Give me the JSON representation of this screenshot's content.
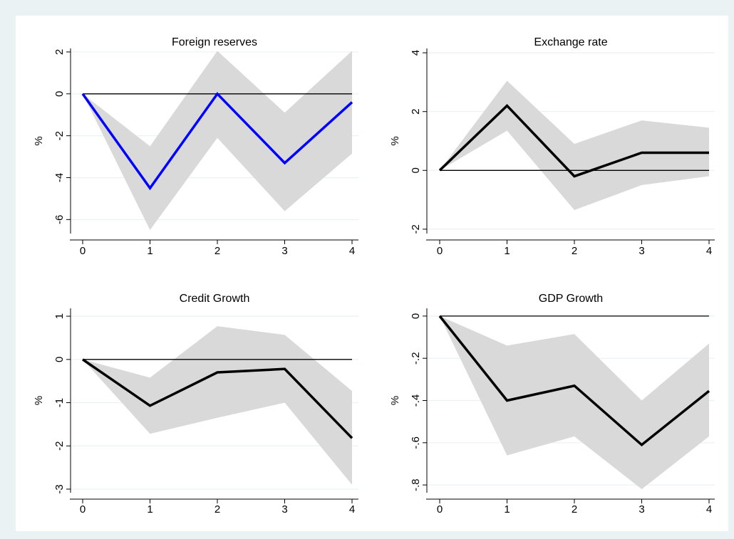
{
  "colors": {
    "outer_background": "#eaf2f3",
    "plot_background": "#ffffff",
    "band": "#d9d9d9",
    "gridline": "#eaf2f3",
    "zero_line": "#000000"
  },
  "chart_data": [
    {
      "type": "line",
      "title": "Foreign reserves",
      "ylabel": "%",
      "x": [
        0,
        1,
        2,
        3,
        4
      ],
      "x_ticks": [
        "0",
        "1",
        "2",
        "3",
        "4"
      ],
      "y_ticks": [
        2,
        0,
        -2,
        -4,
        -6
      ],
      "y_tick_labels": [
        "2",
        "0",
        "-2",
        "-4",
        "-6"
      ],
      "ylim": [
        -6.6,
        2.1
      ],
      "reference_line": 0,
      "line_color": "#0000ff",
      "grid": true,
      "series": [
        {
          "values": [
            0,
            -4.5,
            0,
            -3.3,
            -0.4
          ]
        },
        {
          "role": "band_upper",
          "values": [
            0,
            -2.5,
            2.05,
            -0.9,
            2.05
          ]
        },
        {
          "role": "band_lower",
          "values": [
            0,
            -6.5,
            -2.1,
            -5.6,
            -2.85
          ]
        }
      ]
    },
    {
      "type": "line",
      "title": "Exchange rate",
      "ylabel": "%",
      "x": [
        0,
        1,
        2,
        3,
        4
      ],
      "x_ticks": [
        "0",
        "1",
        "2",
        "3",
        "4"
      ],
      "y_ticks": [
        4,
        2,
        0,
        -2
      ],
      "y_tick_labels": [
        "4",
        "2",
        "0",
        "-2"
      ],
      "ylim": [
        -2.1,
        4.1
      ],
      "reference_line": 0,
      "line_color": "#000000",
      "grid": true,
      "series": [
        {
          "values": [
            0,
            2.2,
            -0.2,
            0.6,
            0.6
          ]
        },
        {
          "role": "band_upper",
          "values": [
            0,
            3.05,
            0.9,
            1.7,
            1.45
          ]
        },
        {
          "role": "band_lower",
          "values": [
            0,
            1.35,
            -1.35,
            -0.5,
            -0.2
          ]
        }
      ]
    },
    {
      "type": "line",
      "title": "Credit Growth",
      "ylabel": "%",
      "x": [
        0,
        1,
        2,
        3,
        4
      ],
      "x_ticks": [
        "0",
        "1",
        "2",
        "3",
        "4"
      ],
      "y_ticks": [
        1,
        0,
        -1,
        -2,
        -3
      ],
      "y_tick_labels": [
        "1",
        "0",
        "-1",
        "-2",
        "-3"
      ],
      "ylim": [
        -3.05,
        1.15
      ],
      "reference_line": 0,
      "line_color": "#000000",
      "grid": true,
      "series": [
        {
          "values": [
            0,
            -1.07,
            -0.3,
            -0.22,
            -1.82
          ]
        },
        {
          "role": "band_upper",
          "values": [
            0,
            -0.42,
            0.77,
            0.57,
            -0.73
          ]
        },
        {
          "role": "band_lower",
          "values": [
            0,
            -1.72,
            -1.35,
            -1.0,
            -2.9
          ]
        }
      ]
    },
    {
      "type": "line",
      "title": "GDP Growth",
      "ylabel": "%",
      "x": [
        0,
        1,
        2,
        3,
        4
      ],
      "x_ticks": [
        "0",
        "1",
        "2",
        "3",
        "4"
      ],
      "y_ticks": [
        0,
        -0.2,
        -0.4,
        -0.6,
        -0.8
      ],
      "y_tick_labels": [
        "0",
        "-.2",
        "-.4",
        "-.6",
        "-.8"
      ],
      "ylim": [
        -0.83,
        0.03
      ],
      "reference_line": 0,
      "line_color": "#000000",
      "grid": true,
      "series": [
        {
          "values": [
            0,
            -0.4,
            -0.33,
            -0.61,
            -0.355
          ]
        },
        {
          "role": "band_upper",
          "values": [
            0,
            -0.14,
            -0.085,
            -0.4,
            -0.13
          ]
        },
        {
          "role": "band_lower",
          "values": [
            0,
            -0.66,
            -0.57,
            -0.82,
            -0.57
          ]
        }
      ]
    }
  ]
}
